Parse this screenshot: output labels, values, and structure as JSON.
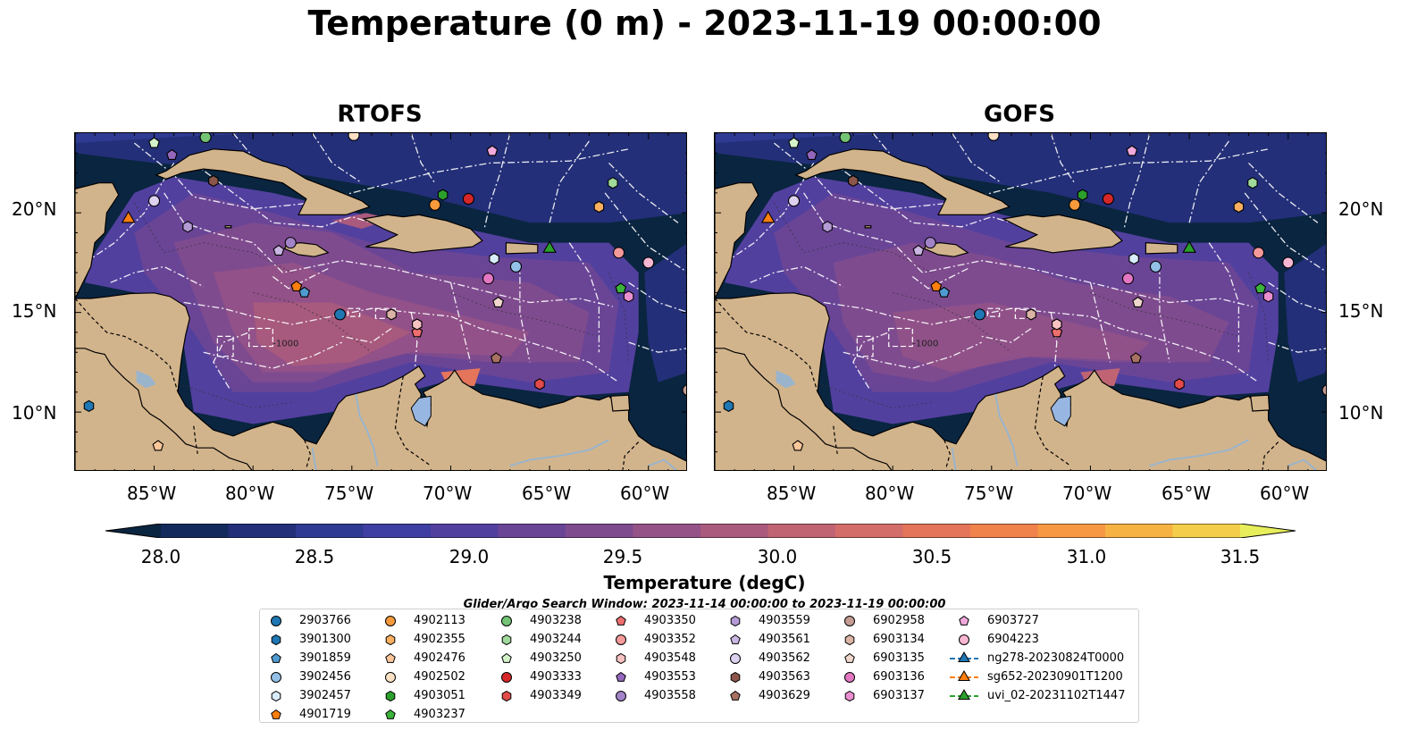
{
  "title": "Temperature (0 m) - 2023-11-19 00:00:00",
  "panels": [
    {
      "title": "RTOFS",
      "model": "rtofs"
    },
    {
      "title": "GOFS",
      "model": "gofs"
    }
  ],
  "axes": {
    "lat_ticks": [
      "20°N",
      "15°N",
      "10°N"
    ],
    "lon_ticks": [
      "85°W",
      "80°W",
      "75°W",
      "70°W",
      "65°W",
      "60°W"
    ],
    "lon_range": [
      -89,
      -58
    ],
    "lat_range": [
      7,
      24
    ],
    "bathymetry_label": "-1000"
  },
  "colorbar": {
    "label": "Temperature (degC)",
    "ticks": [
      "28.0",
      "28.5",
      "29.0",
      "29.5",
      "30.0",
      "30.5",
      "31.0",
      "31.5"
    ],
    "min": 28.0,
    "max": 31.5,
    "step": 0.25,
    "extend": "both",
    "colors": [
      "#0a2540",
      "#122a5c",
      "#232f78",
      "#2f3a92",
      "#3f3ea2",
      "#52409f",
      "#6a4596",
      "#7f4b8f",
      "#955287",
      "#aa5a7d",
      "#c06473",
      "#d36d69",
      "#e4755b",
      "#f0824c",
      "#f69844",
      "#f7b244",
      "#f4ce4a",
      "#e7ee5c"
    ]
  },
  "search_window": "Glider/Argo Search Window: 2023-11-14 00:00:00 to 2023-11-19 00:00:00",
  "colors": {
    "land": "#d2b48c",
    "lake": "#97b6e1",
    "river": "#9ab4cc",
    "ocean_dark": "#0a2540"
  },
  "legend": [
    {
      "label": "2903766",
      "marker": "circle",
      "color": "#1f77b4"
    },
    {
      "label": "3901300",
      "marker": "hexagon",
      "color": "#1f77b4"
    },
    {
      "label": "3901859",
      "marker": "pentagon",
      "color": "#4f9bd0"
    },
    {
      "label": "3902456",
      "marker": "circle",
      "color": "#93c0e6"
    },
    {
      "label": "3902457",
      "marker": "hexagon",
      "color": "#d9ecfa"
    },
    {
      "label": "4901719",
      "marker": "pentagon",
      "color": "#ff7f0e"
    },
    {
      "label": "4902113",
      "marker": "circle",
      "color": "#f69a3c"
    },
    {
      "label": "4902355",
      "marker": "hexagon",
      "color": "#fbb061"
    },
    {
      "label": "4902476",
      "marker": "pentagon",
      "color": "#fcc69a"
    },
    {
      "label": "4902502",
      "marker": "circle",
      "color": "#fde1c4"
    },
    {
      "label": "4903051",
      "marker": "hexagon",
      "color": "#2ca02c"
    },
    {
      "label": "4903237",
      "marker": "pentagon",
      "color": "#3bb33b"
    },
    {
      "label": "4903238",
      "marker": "circle",
      "color": "#74c476"
    },
    {
      "label": "4903244",
      "marker": "hexagon",
      "color": "#a1d99b"
    },
    {
      "label": "4903250",
      "marker": "pentagon",
      "color": "#d4f2c9"
    },
    {
      "label": "4903333",
      "marker": "circle",
      "color": "#d62728"
    },
    {
      "label": "4903349",
      "marker": "hexagon",
      "color": "#e34a4a"
    },
    {
      "label": "4903350",
      "marker": "pentagon",
      "color": "#ef6e6e"
    },
    {
      "label": "4903352",
      "marker": "circle",
      "color": "#f59a9a"
    },
    {
      "label": "4903548",
      "marker": "hexagon",
      "color": "#f8c2c2"
    },
    {
      "label": "4903553",
      "marker": "pentagon",
      "color": "#9467bd"
    },
    {
      "label": "4903558",
      "marker": "circle",
      "color": "#a283c8"
    },
    {
      "label": "4903559",
      "marker": "hexagon",
      "color": "#b59bd6"
    },
    {
      "label": "4903561",
      "marker": "pentagon",
      "color": "#c9b6e3"
    },
    {
      "label": "4903562",
      "marker": "circle",
      "color": "#ddd1ef"
    },
    {
      "label": "4903563",
      "marker": "hexagon",
      "color": "#8c564b"
    },
    {
      "label": "4903629",
      "marker": "pentagon",
      "color": "#a77163"
    },
    {
      "label": "6902958",
      "marker": "circle",
      "color": "#c49c94"
    },
    {
      "label": "6903134",
      "marker": "hexagon",
      "color": "#dbb4a6"
    },
    {
      "label": "6903135",
      "marker": "pentagon",
      "color": "#f0d6cc"
    },
    {
      "label": "6903136",
      "marker": "circle",
      "color": "#e377c2"
    },
    {
      "label": "6903137",
      "marker": "hexagon",
      "color": "#ea8fd0"
    },
    {
      "label": "6903727",
      "marker": "pentagon",
      "color": "#f2a9dc"
    },
    {
      "label": "6904223",
      "marker": "circle",
      "color": "#f7b6d2"
    },
    {
      "label": "ng278-20230824T0000",
      "marker": "triangle",
      "color": "#1f77b4",
      "line": true
    },
    {
      "label": "sg652-20230901T1200",
      "marker": "triangle",
      "color": "#ff7f0e",
      "line": true
    },
    {
      "label": "uvi_02-20231102T1447",
      "marker": "triangle",
      "color": "#2ca02c",
      "line": true
    }
  ],
  "observations": [
    {
      "id": "2903766",
      "lon": -75.6,
      "lat": 14.9
    },
    {
      "id": "3901300",
      "lon": -88.3,
      "lat": 10.3
    },
    {
      "id": "3901859",
      "lon": -77.4,
      "lat": 16.0
    },
    {
      "id": "3902456",
      "lon": -66.7,
      "lat": 17.3
    },
    {
      "id": "3902457",
      "lon": -67.8,
      "lat": 17.7
    },
    {
      "id": "4901719",
      "lon": -77.8,
      "lat": 16.3
    },
    {
      "id": "4902113",
      "lon": -70.8,
      "lat": 20.4
    },
    {
      "id": "4902355",
      "lon": -62.5,
      "lat": 20.3
    },
    {
      "id": "4902476",
      "lon": -84.8,
      "lat": 8.3
    },
    {
      "id": "4902502",
      "lon": -74.9,
      "lat": 23.9
    },
    {
      "id": "4903051",
      "lon": -70.4,
      "lat": 20.9
    },
    {
      "id": "4903237",
      "lon": -61.4,
      "lat": 16.2
    },
    {
      "id": "4903238",
      "lon": -82.4,
      "lat": 23.8
    },
    {
      "id": "4903244",
      "lon": -61.8,
      "lat": 21.5
    },
    {
      "id": "4903250",
      "lon": -85.0,
      "lat": 23.5
    },
    {
      "id": "4903333",
      "lon": -69.1,
      "lat": 20.7
    },
    {
      "id": "4903349",
      "lon": -65.5,
      "lat": 11.4
    },
    {
      "id": "4903350",
      "lon": -71.7,
      "lat": 14.0
    },
    {
      "id": "4903352",
      "lon": -61.5,
      "lat": 18.0
    },
    {
      "id": "4903548",
      "lon": -71.7,
      "lat": 14.4
    },
    {
      "id": "4903553",
      "lon": -84.1,
      "lat": 22.9
    },
    {
      "id": "4903558",
      "lon": -78.1,
      "lat": 18.5
    },
    {
      "id": "4903559",
      "lon": -83.3,
      "lat": 19.3
    },
    {
      "id": "4903561",
      "lon": -78.7,
      "lat": 18.1
    },
    {
      "id": "4903562",
      "lon": -85.0,
      "lat": 20.6
    },
    {
      "id": "4903563",
      "lon": -82.0,
      "lat": 21.6
    },
    {
      "id": "4903629",
      "lon": -67.7,
      "lat": 12.7
    },
    {
      "id": "6902958",
      "lon": -58.0,
      "lat": 11.1
    },
    {
      "id": "6903134",
      "lon": -73.0,
      "lat": 14.9
    },
    {
      "id": "6903135",
      "lon": -67.6,
      "lat": 15.5
    },
    {
      "id": "6903136",
      "lon": -68.1,
      "lat": 16.7
    },
    {
      "id": "6903137",
      "lon": -61.0,
      "lat": 15.8
    },
    {
      "id": "6903727",
      "lon": -67.9,
      "lat": 23.1
    },
    {
      "id": "6904223",
      "lon": -60.0,
      "lat": 17.5
    },
    {
      "id": "sg652-20230901T1200",
      "lon": -86.3,
      "lat": 19.7
    },
    {
      "id": "uvi_02-20231102T1447",
      "lon": -65.0,
      "lat": 18.2
    }
  ]
}
